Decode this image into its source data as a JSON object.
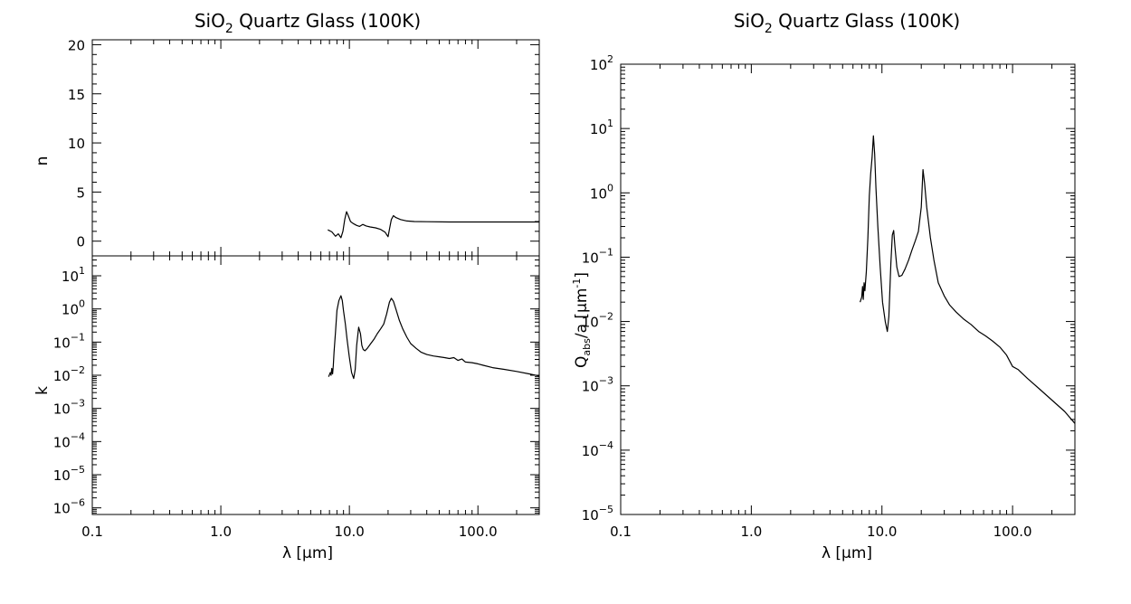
{
  "chart_data": [
    {
      "panel": "left-top",
      "type": "line",
      "title": "SiO2 Quartz Glass (100K)",
      "title_main": "SiO",
      "title_sub": "2",
      "title_rest": " Quartz Glass (100K)",
      "ylabel": "n",
      "xscale": "log",
      "yscale": "linear",
      "xlim": [
        0.1,
        300
      ],
      "ylim": [
        -1.5,
        20.5
      ],
      "yticks": [
        0,
        5,
        10,
        15,
        20
      ],
      "yticklabels": [
        "0",
        "5",
        "10",
        "15",
        "20"
      ],
      "x": [
        6.8,
        7.3,
        7.8,
        8.2,
        8.6,
        8.9,
        9.2,
        9.5,
        9.8,
        10.2,
        10.7,
        11.4,
        12.0,
        12.7,
        13.5,
        14.5,
        16,
        17.5,
        19.0,
        20.0,
        20.5,
        21.2,
        22.0,
        23,
        25,
        28,
        32,
        40,
        60,
        100,
        200,
        300
      ],
      "y": [
        1.15,
        0.95,
        0.5,
        0.75,
        0.35,
        1.0,
        2.2,
        3.0,
        2.6,
        2.0,
        1.8,
        1.6,
        1.5,
        1.7,
        1.55,
        1.45,
        1.35,
        1.2,
        0.9,
        0.45,
        1.2,
        2.2,
        2.6,
        2.4,
        2.2,
        2.05,
        2.0,
        1.98,
        1.95,
        1.95,
        1.95,
        1.95
      ]
    },
    {
      "panel": "left-bottom",
      "type": "line",
      "ylabel": "k",
      "xlabel": "λ [μm]",
      "xscale": "log",
      "yscale": "log",
      "xlim": [
        0.1,
        300
      ],
      "ylim_exp": [
        -6.2,
        1.6
      ],
      "ytick_exponents": [
        -6,
        -5,
        -4,
        -3,
        -2,
        -1,
        0,
        1
      ],
      "xticks": [
        0.1,
        1,
        10,
        100
      ],
      "xticklabels": [
        "0.1",
        "1.0",
        "10.0",
        "100.0"
      ],
      "x": [
        6.9,
        7.1,
        7.2,
        7.3,
        7.4,
        7.5,
        7.6,
        7.8,
        8.0,
        8.3,
        8.6,
        8.8,
        9.0,
        9.3,
        9.6,
        10.0,
        10.4,
        10.8,
        11.1,
        11.4,
        11.8,
        12.2,
        12.5,
        12.8,
        13.2,
        13.8,
        14.5,
        15.5,
        16.5,
        17.5,
        18.5,
        19.5,
        20.5,
        21.2,
        22.0,
        23.0,
        24.5,
        26,
        28,
        30,
        33,
        36,
        40,
        45,
        50,
        55,
        60,
        65,
        70,
        75,
        80,
        90,
        100,
        110,
        130,
        160,
        200,
        250,
        300
      ],
      "y": [
        0.009,
        0.012,
        0.01,
        0.016,
        0.011,
        0.02,
        0.05,
        0.2,
        0.9,
        1.8,
        2.5,
        1.8,
        0.9,
        0.35,
        0.12,
        0.035,
        0.012,
        0.008,
        0.015,
        0.08,
        0.28,
        0.18,
        0.08,
        0.06,
        0.055,
        0.065,
        0.085,
        0.12,
        0.18,
        0.25,
        0.35,
        0.7,
        1.6,
        2.1,
        1.7,
        1.0,
        0.45,
        0.25,
        0.14,
        0.09,
        0.065,
        0.05,
        0.042,
        0.038,
        0.036,
        0.034,
        0.032,
        0.034,
        0.028,
        0.031,
        0.025,
        0.024,
        0.022,
        0.02,
        0.017,
        0.015,
        0.013,
        0.011,
        0.0095
      ]
    },
    {
      "panel": "right",
      "type": "line",
      "title": "SiO2 Quartz Glass (100K)",
      "title_main": "SiO",
      "title_sub": "2",
      "title_rest": " Quartz Glass (100K)",
      "ylabel": "Qabs/a [μm-1]",
      "ylabel_main": "Q",
      "ylabel_sub": "abs",
      "ylabel_mid": "/a [μm",
      "ylabel_sup": "-1",
      "ylabel_end": "]",
      "xlabel": "λ [μm]",
      "xscale": "log",
      "yscale": "log",
      "xlim": [
        0.1,
        300
      ],
      "ylim_exp": [
        -5,
        2
      ],
      "ytick_exponents": [
        -5,
        -4,
        -3,
        -2,
        -1,
        0,
        1,
        2
      ],
      "xticks": [
        0.1,
        1,
        10,
        100
      ],
      "xticklabels": [
        "0.1",
        "1.0",
        "10.0",
        "100.0"
      ],
      "x": [
        6.8,
        7.0,
        7.1,
        7.2,
        7.3,
        7.4,
        7.6,
        7.8,
        8.0,
        8.2,
        8.4,
        8.6,
        8.8,
        9.0,
        9.3,
        9.7,
        10.1,
        10.6,
        11.0,
        11.3,
        11.7,
        12.0,
        12.3,
        12.6,
        13.0,
        13.5,
        14.2,
        15.0,
        16,
        17,
        18,
        19,
        20,
        20.6,
        21.2,
        22,
        23.5,
        25,
        27,
        30,
        33,
        37,
        42,
        48,
        55,
        62,
        70,
        80,
        90,
        100,
        110,
        130,
        160,
        200,
        250,
        300
      ],
      "y": [
        0.02,
        0.024,
        0.035,
        0.022,
        0.04,
        0.03,
        0.06,
        0.2,
        0.9,
        2.0,
        3.5,
        7.7,
        4.0,
        1.2,
        0.3,
        0.07,
        0.02,
        0.01,
        0.007,
        0.012,
        0.08,
        0.22,
        0.26,
        0.14,
        0.07,
        0.05,
        0.052,
        0.065,
        0.09,
        0.13,
        0.18,
        0.25,
        0.6,
        2.3,
        1.4,
        0.6,
        0.2,
        0.09,
        0.04,
        0.025,
        0.018,
        0.014,
        0.011,
        0.009,
        0.007,
        0.006,
        0.005,
        0.004,
        0.003,
        0.002,
        0.0018,
        0.0013,
        0.0009,
        0.0006,
        0.0004,
        0.00026
      ]
    }
  ]
}
